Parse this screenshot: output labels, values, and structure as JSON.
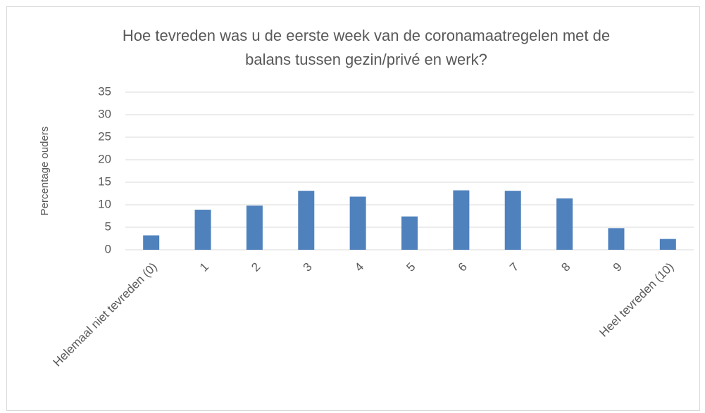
{
  "chart_data": {
    "type": "bar",
    "title": [
      "Hoe tevreden was u de eerste week van de coronamaatregelen met de",
      "balans tussen gezin/privé en werk?"
    ],
    "y_label": "Percentage ouders",
    "categories": [
      "Helemaal niet tevreden (0)",
      "1",
      "2",
      "3",
      "4",
      "5",
      "6",
      "7",
      "8",
      "9",
      "Heel tevreden (10)"
    ],
    "values": [
      3.2,
      8.9,
      9.8,
      13.1,
      11.8,
      7.4,
      13.2,
      13.1,
      11.4,
      4.8,
      2.4
    ],
    "color": "#4f81bd",
    "ylim": [
      0,
      35
    ],
    "yticks": [
      0,
      5,
      10,
      15,
      20,
      25,
      30,
      35
    ],
    "grid": true
  }
}
